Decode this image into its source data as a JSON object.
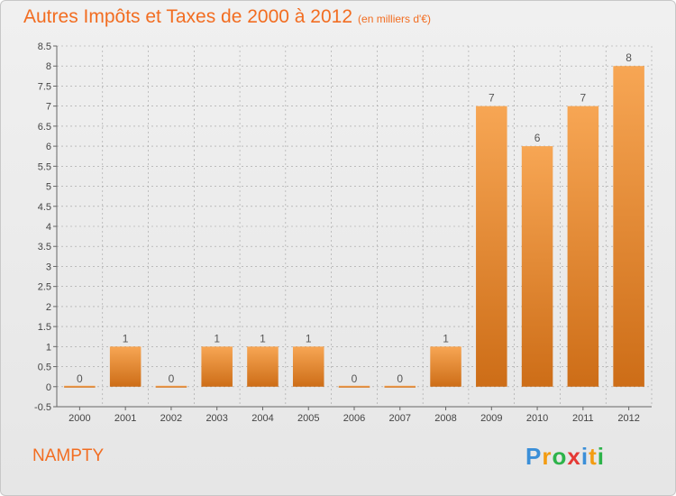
{
  "header": {
    "title": "Autres Impôts et Taxes de 2000 à 2012",
    "unit": "(en milliers d'€)"
  },
  "footer": {
    "commune": "NAMPTY",
    "logo": [
      "P",
      "r",
      "o",
      "x",
      "i",
      "t",
      "i"
    ]
  },
  "colors": {
    "bar_top": "#f7a654",
    "bar_bottom": "#cd6d17",
    "title": "#f26d21",
    "grid": "#a0a0a0"
  },
  "chart_data": {
    "type": "bar",
    "categories": [
      "2000",
      "2001",
      "2002",
      "2003",
      "2004",
      "2005",
      "2006",
      "2007",
      "2008",
      "2009",
      "2010",
      "2011",
      "2012"
    ],
    "values": [
      0,
      1,
      0,
      1,
      1,
      1,
      0,
      0,
      1,
      7,
      6,
      7,
      8
    ],
    "ylim": [
      -0.5,
      8.5
    ],
    "yticks": [
      "8.5",
      "8",
      "7.5",
      "7",
      "6.5",
      "6",
      "5.5",
      "5",
      "4.5",
      "4",
      "3.5",
      "3",
      "2.5",
      "2",
      "1.5",
      "1",
      "0.5",
      "0",
      "-0.5"
    ],
    "grid": true,
    "legend": "none"
  }
}
